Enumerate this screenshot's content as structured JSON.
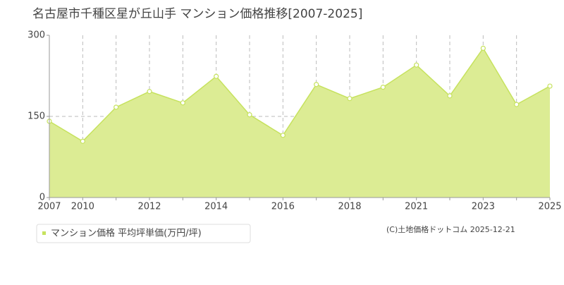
{
  "chart_data": {
    "type": "area",
    "title": "名古屋市千種区星が丘山手 マンション価格推移[2007-2025]",
    "categories": [
      "2007",
      "2010",
      null,
      "2012",
      null,
      "2014",
      null,
      "2016",
      null,
      "2018",
      null,
      "2021",
      null,
      "2023",
      null,
      "2025"
    ],
    "series": [
      {
        "name": "マンション価格 平均坪単価(万円/坪)",
        "color": "#c6e25e",
        "fill": "#dcec94",
        "values": [
          141,
          104,
          167,
          196,
          175,
          224,
          153,
          115,
          209,
          183,
          204,
          245,
          188,
          276,
          172,
          206
        ]
      }
    ],
    "ylim": [
      0,
      300
    ],
    "yticks": [
      0,
      150,
      300
    ],
    "grid": true,
    "source": "(C)土地価格ドットコム 2025-12-21"
  }
}
